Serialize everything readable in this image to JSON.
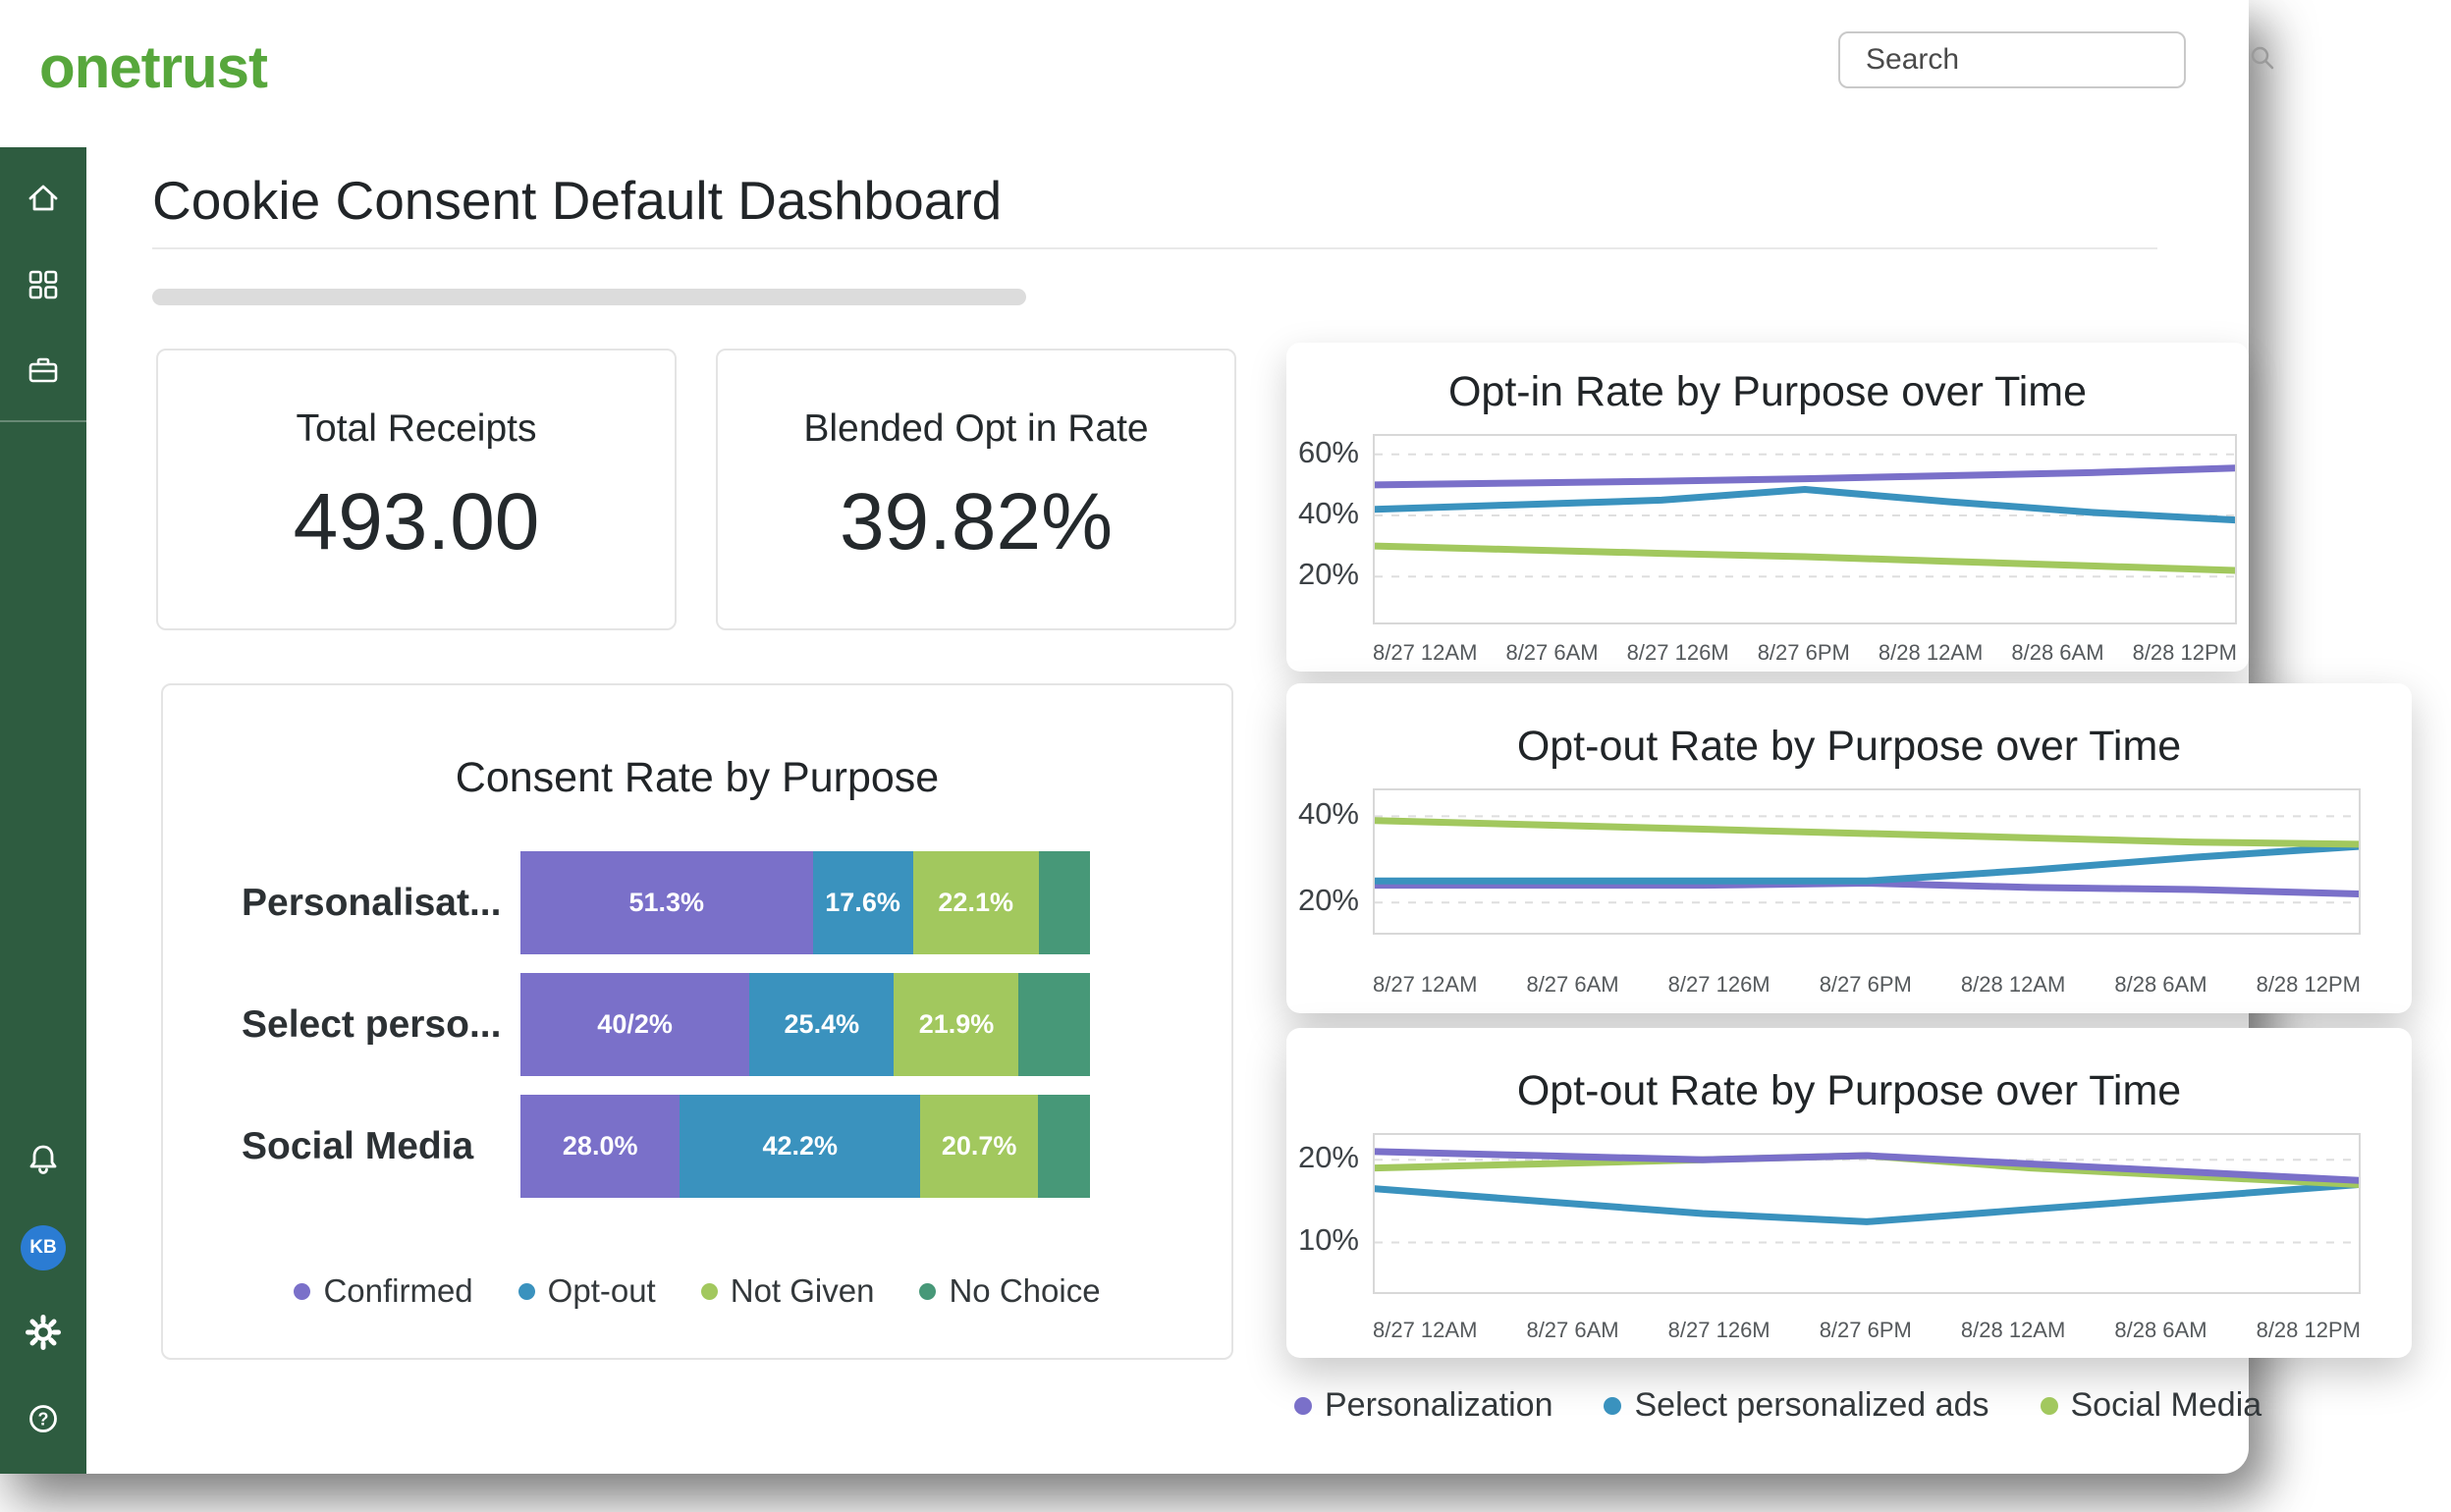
{
  "brand": {
    "logo_text": "onetrust"
  },
  "search": {
    "placeholder": "Search"
  },
  "page": {
    "title": "Cookie Consent Default Dashboard"
  },
  "sidebar": {
    "avatar_initials": "KB"
  },
  "kpis": [
    {
      "label": "Total Receipts",
      "value": "493.00"
    },
    {
      "label": "Blended Opt in Rate",
      "value": "39.82%"
    }
  ],
  "colors": {
    "brand_green": "#57a73c",
    "sidebar_green": "#2e5c40",
    "purple": "#7a70c9",
    "blue": "#3a92be",
    "light_green": "#a2c85e",
    "teal": "#479878",
    "avatar_blue": "#2b7cd3"
  },
  "line_legend": [
    {
      "label": "Personalization",
      "color": "#7a70c9"
    },
    {
      "label": "Select personalized ads",
      "color": "#3a92be"
    },
    {
      "label": "Social Media",
      "color": "#a2c85e"
    }
  ],
  "chart_data": [
    {
      "type": "bar",
      "orientation": "horizontal",
      "stacked": true,
      "title": "Consent Rate by Purpose",
      "categories": [
        "Personalisat...",
        "Select perso...",
        "Social Media"
      ],
      "xlim": [
        0,
        100
      ],
      "series": [
        {
          "name": "Confirmed",
          "color": "#7a70c9",
          "values": [
            51.3,
            40.2,
            28.0
          ],
          "display_labels": [
            "51.3%",
            "40/2%",
            "28.0%"
          ]
        },
        {
          "name": "Opt-out",
          "color": "#3a92be",
          "values": [
            17.6,
            25.4,
            42.2
          ],
          "display_labels": [
            "17.6%",
            "25.4%",
            "42.2%"
          ]
        },
        {
          "name": "Not Given",
          "color": "#a2c85e",
          "values": [
            22.1,
            21.9,
            20.7
          ],
          "display_labels": [
            "22.1%",
            "21.9%",
            "20.7%"
          ]
        },
        {
          "name": "No Choice",
          "color": "#479878",
          "values": [
            9.0,
            12.5,
            9.1
          ],
          "display_labels": [
            "",
            "",
            ""
          ]
        }
      ],
      "legend": [
        {
          "label": "Confirmed",
          "color": "#7a70c9"
        },
        {
          "label": "Opt-out",
          "color": "#3a92be"
        },
        {
          "label": "Not Given",
          "color": "#a2c85e"
        },
        {
          "label": "No Choice",
          "color": "#479878"
        }
      ]
    },
    {
      "type": "line",
      "title": "Opt-in Rate by Purpose over Time",
      "x": [
        "8/27 12AM",
        "8/27 6AM",
        "8/27 126M",
        "8/27 6PM",
        "8/28 12AM",
        "8/28 6AM",
        "8/28 12PM"
      ],
      "ylim": [
        5,
        66
      ],
      "yticks": [
        20,
        40,
        60
      ],
      "grid": "dashed-horizontal",
      "legend_position": "shared-bottom",
      "series": [
        {
          "name": "Social Media",
          "color": "#a2c85e",
          "values": [
            30,
            28.8,
            27.6,
            26.5,
            25,
            23.5,
            22
          ]
        },
        {
          "name": "Select personalized ads",
          "color": "#3a92be",
          "values": [
            42,
            43.5,
            45,
            48.5,
            44.5,
            41,
            38.5
          ]
        },
        {
          "name": "Personalization",
          "color": "#7a70c9",
          "values": [
            50,
            50.6,
            51.2,
            52,
            53,
            54,
            55.5
          ]
        }
      ]
    },
    {
      "type": "line",
      "title": "Opt-out Rate by Purpose over Time",
      "x": [
        "8/27 12AM",
        "8/27 6AM",
        "8/27 126M",
        "8/27 6PM",
        "8/28 12AM",
        "8/28 6AM",
        "8/28 12PM"
      ],
      "ylim": [
        13,
        46
      ],
      "yticks": [
        20,
        40
      ],
      "grid": "dashed-horizontal",
      "legend_position": "shared-bottom",
      "series": [
        {
          "name": "Personalization",
          "color": "#7a70c9",
          "values": [
            24,
            24,
            24,
            24.5,
            23.5,
            23,
            22
          ]
        },
        {
          "name": "Select personalized ads",
          "color": "#3a92be",
          "values": [
            25,
            25,
            25,
            25,
            27.5,
            30.5,
            33
          ]
        },
        {
          "name": "Social Media",
          "color": "#a2c85e",
          "values": [
            39,
            38,
            37,
            36,
            35,
            34,
            33.5
          ]
        }
      ]
    },
    {
      "type": "line",
      "title": "Opt-out Rate by Purpose over Time",
      "x": [
        "8/27 12AM",
        "8/27 6AM",
        "8/27 126M",
        "8/27 6PM",
        "8/28 12AM",
        "8/28 6AM",
        "8/28 12PM"
      ],
      "ylim": [
        4,
        23
      ],
      "yticks": [
        10,
        20
      ],
      "grid": "dashed-horizontal",
      "legend_position": "shared-bottom",
      "series": [
        {
          "name": "Select personalized ads",
          "color": "#3a92be",
          "values": [
            16.5,
            15,
            13.5,
            12.5,
            14,
            15.5,
            17
          ]
        },
        {
          "name": "Social Media",
          "color": "#a2c85e",
          "values": [
            19,
            19.5,
            20,
            20.5,
            19,
            18,
            17
          ]
        },
        {
          "name": "Personalization",
          "color": "#7a70c9",
          "values": [
            21,
            20.5,
            20,
            20.5,
            19.5,
            18.5,
            17.5
          ]
        }
      ]
    }
  ]
}
